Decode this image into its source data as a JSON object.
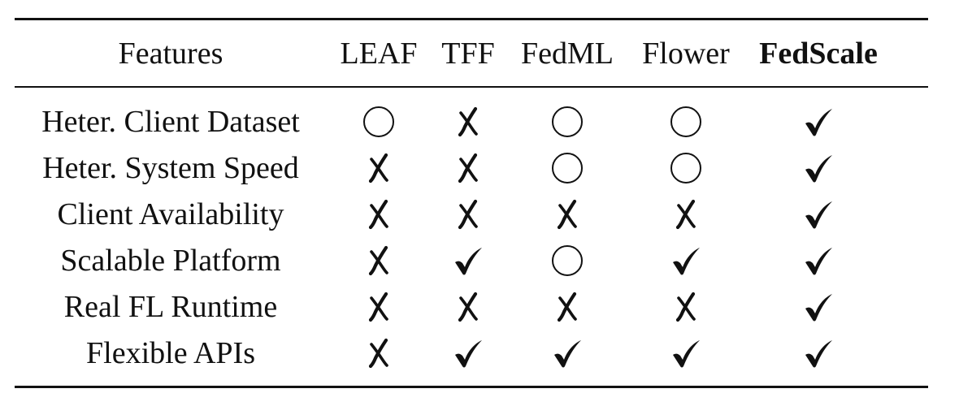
{
  "header": {
    "features_label": "Features",
    "columns": [
      "LEAF",
      "TFF",
      "FedML",
      "Flower",
      "FedScale"
    ]
  },
  "rows": [
    {
      "feature": "Heter. Client Dataset",
      "values": [
        "partial",
        "no",
        "partial",
        "partial",
        "yes"
      ]
    },
    {
      "feature": "Heter. System Speed",
      "values": [
        "no",
        "no",
        "partial",
        "partial",
        "yes"
      ]
    },
    {
      "feature": "Client Availability",
      "values": [
        "no",
        "no",
        "no",
        "no",
        "yes"
      ]
    },
    {
      "feature": "Scalable Platform",
      "values": [
        "no",
        "yes",
        "partial",
        "yes",
        "yes"
      ]
    },
    {
      "feature": "Real FL Runtime",
      "values": [
        "no",
        "no",
        "no",
        "no",
        "yes"
      ]
    },
    {
      "feature": "Flexible APIs",
      "values": [
        "no",
        "yes",
        "yes",
        "yes",
        "yes"
      ]
    }
  ],
  "legend_icons": {
    "yes": "check-icon",
    "no": "cross-icon",
    "partial": "circle-icon"
  }
}
